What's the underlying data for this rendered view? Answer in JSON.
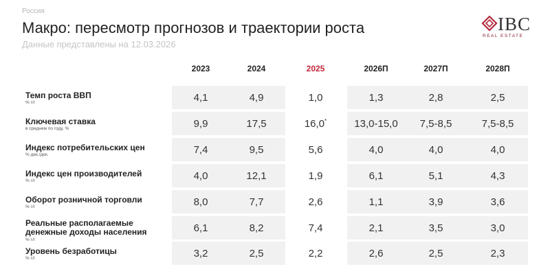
{
  "header": {
    "region": "Россия",
    "title": "Макро: пересмотр прогнозов и траектории роста",
    "subtitle": "Данные представлены на 12.03.2026"
  },
  "logo": {
    "name": "IBC",
    "tagline": "REAL ESTATE"
  },
  "table": {
    "columns": [
      "2023",
      "2024",
      "2025",
      "2026П",
      "2027П",
      "2028П"
    ],
    "rows": [
      {
        "label": "Темп роста ВВП",
        "unit": "% г/г",
        "values": [
          "4,1",
          "4,9",
          "1,0",
          "1,3",
          "2,8",
          "2,5"
        ]
      },
      {
        "label": "Ключевая ставка",
        "unit": "в среднем по году, %",
        "values": [
          "9,9",
          "17,5",
          "16,0",
          "13,0-15,0",
          "7,5-8,5",
          "7,5-8,5"
        ],
        "footnote": "*"
      },
      {
        "label": "Индекс потребительских цен",
        "unit": "% дек./дек.",
        "values": [
          "7,4",
          "9,5",
          "5,6",
          "4,0",
          "4,0",
          "4,0"
        ]
      },
      {
        "label": "Индекс цен производителей",
        "unit": "% г/г",
        "values": [
          "4,0",
          "12,1",
          "1,9",
          "6,1",
          "5,1",
          "4,3"
        ]
      },
      {
        "label": "Оборот розничной торговли",
        "unit": "% г/г",
        "values": [
          "8,0",
          "7,7",
          "2,6",
          "1,1",
          "3,9",
          "3,6"
        ]
      },
      {
        "label": "Реальные располагаемые\nденежные доходы населения",
        "unit": "% г/г",
        "values": [
          "6,1",
          "8,2",
          "7,4",
          "2,1",
          "3,5",
          "3,0"
        ]
      },
      {
        "label": "Уровень безработицы",
        "unit": "% г/г",
        "values": [
          "3,2",
          "2,5",
          "2,2",
          "2,6",
          "2,5",
          "2,3"
        ]
      }
    ]
  }
}
